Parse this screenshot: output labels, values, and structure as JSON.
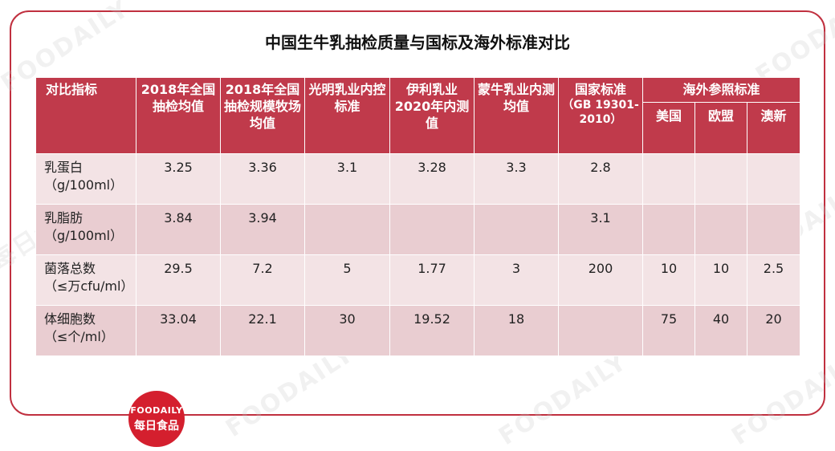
{
  "title": "中国生牛乳抽检质量与国标及海外标准对比",
  "watermark": {
    "text_en": "FOODAILY",
    "text_cn": "每日食品"
  },
  "logo": {
    "line1": "FOODAILY",
    "line2": "每日食品"
  },
  "colors": {
    "accent": "#c03a4b",
    "row_light": "#f3e3e5",
    "row_dark": "#e9cdd1",
    "frame": "#c0303f"
  },
  "table": {
    "headers": {
      "indicator": "对比指标",
      "national_2018_avg": "2018年全国抽检均值",
      "national_2018_ranch": "2018年全国抽检规模牧场均值",
      "bright_dairy": "光明乳业内控标准",
      "yili_2020": "伊利乳业2020年内测值",
      "mengniu": "蒙牛乳业内测均值",
      "national_std": "国家标准",
      "national_std_code": "（GB 19301-2010）",
      "overseas": "海外参照标准",
      "usa": "美国",
      "eu": "欧盟",
      "australia": "澳新"
    },
    "rows": [
      {
        "name": "乳蛋白",
        "unit": "（g/100ml）",
        "values": [
          "3.25",
          "3.36",
          "3.1",
          "3.28",
          "3.3",
          "2.8",
          "",
          "",
          ""
        ]
      },
      {
        "name": "乳脂肪",
        "unit": "（g/100ml）",
        "values": [
          "3.84",
          "3.94",
          "",
          "",
          "",
          "3.1",
          "",
          "",
          ""
        ]
      },
      {
        "name": "菌落总数",
        "unit": "（≤万cfu/ml）",
        "values": [
          "29.5",
          "7.2",
          "5",
          "1.77",
          "3",
          "200",
          "10",
          "10",
          "2.5"
        ]
      },
      {
        "name": "体细胞数",
        "unit": "（≤个/ml）",
        "values": [
          "33.04",
          "22.1",
          "30",
          "19.52",
          "18",
          "",
          "75",
          "40",
          "20"
        ]
      }
    ]
  }
}
